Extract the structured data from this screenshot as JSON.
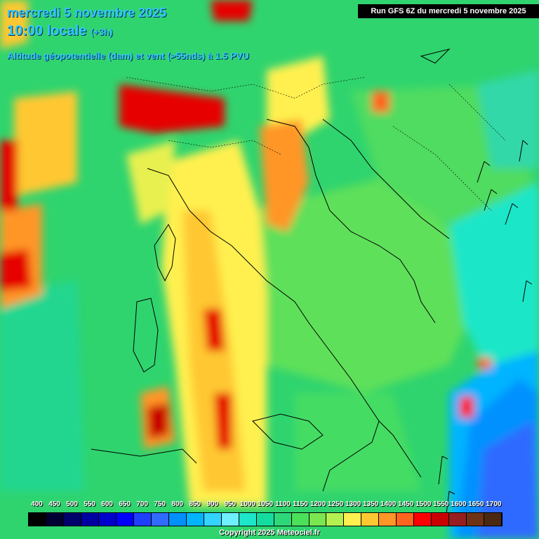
{
  "header": {
    "date": "mercredi 5 novembre 2025",
    "time": "10:00 locale",
    "offset": "(+3h)",
    "parameter": "Altitude géopotentielle (dam) et vent (>55nds) à 1.5 PVU"
  },
  "run_label": "Run GFS 6Z du mercredi 5 novembre 2025",
  "legend": {
    "ticks": [
      "400",
      "450",
      "500",
      "550",
      "600",
      "650",
      "700",
      "750",
      "800",
      "850",
      "900",
      "950",
      "1000",
      "1050",
      "1100",
      "1150",
      "1200",
      "1250",
      "1300",
      "1350",
      "1400",
      "1450",
      "1500",
      "1550",
      "1600",
      "1650",
      "1700"
    ],
    "colors": [
      "#000000",
      "#000033",
      "#00006b",
      "#0000a0",
      "#0000cc",
      "#0000ff",
      "#1f3fff",
      "#2f6bff",
      "#0091ff",
      "#00b4ff",
      "#33d2ff",
      "#6ef0ff",
      "#1ee6c8",
      "#14dca0",
      "#2cd878",
      "#4be05a",
      "#7ae650",
      "#b4f050",
      "#fff050",
      "#ffc832",
      "#ff9628",
      "#ff641e",
      "#ff0000",
      "#c80000",
      "#961e1e",
      "#6e3214",
      "#4b2810"
    ]
  },
  "copyright": "Copyright 2025 Meteociel.fr",
  "map_colors": {
    "base_green": "#2fd46e",
    "sea_cyan": "#1ee6c8",
    "deep_blue": "#1f3fff",
    "yellow": "#fff050",
    "orange": "#ffa028",
    "red": "#e60000"
  }
}
